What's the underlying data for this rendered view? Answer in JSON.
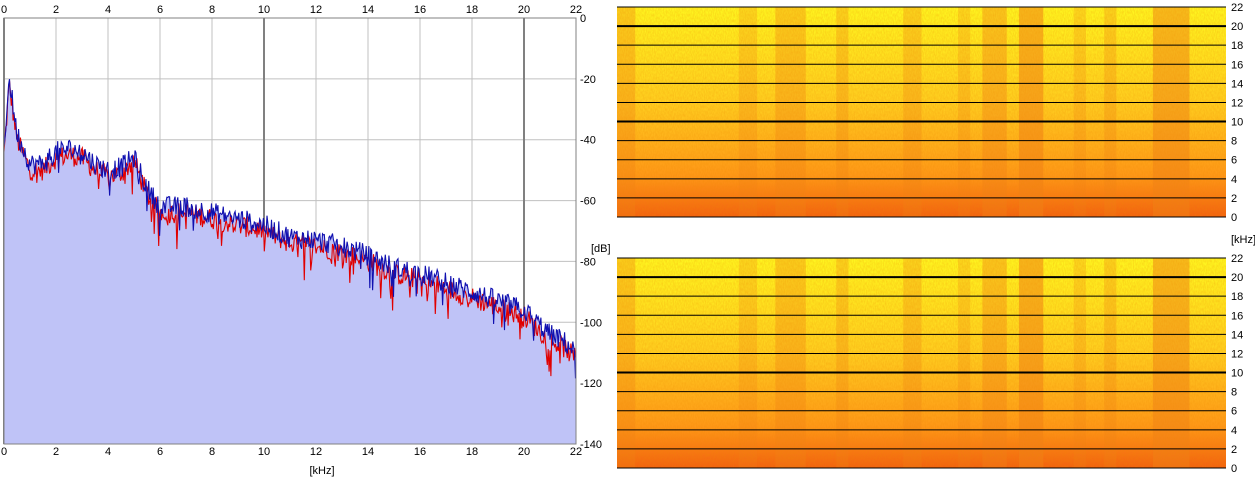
{
  "chart_data": [
    {
      "type": "line",
      "title": "",
      "xlabel": "[kHz]",
      "ylabel": "[dB]",
      "xlim": [
        0,
        22
      ],
      "ylim": [
        -140,
        0
      ],
      "x_ticks": [
        "0",
        "2",
        "4",
        "6",
        "8",
        "10",
        "12",
        "14",
        "16",
        "18",
        "20",
        "22"
      ],
      "y_ticks": [
        "0",
        "-20",
        "-40",
        "-60",
        "-80",
        "-100",
        "-120",
        "-140"
      ],
      "grid": true,
      "fill_color": "#bfc3f7",
      "series": [
        {
          "color": "#e00000",
          "x": [
            0,
            0.2,
            0.5,
            1,
            1.5,
            2,
            2.5,
            3,
            3.5,
            4,
            4.5,
            5,
            5.5,
            6,
            7,
            8,
            9,
            10,
            11,
            12,
            13,
            14,
            15,
            16,
            17,
            18,
            19,
            20,
            21,
            21.5,
            22
          ],
          "y": [
            -45,
            -22,
            -40,
            -50,
            -50,
            -46,
            -45,
            -46,
            -50,
            -52,
            -51,
            -47,
            -58,
            -64,
            -64,
            -66,
            -68,
            -70,
            -74,
            -75,
            -77,
            -80,
            -84,
            -86,
            -89,
            -92,
            -95,
            -98,
            -106,
            -108,
            -112
          ]
        },
        {
          "color": "#1010b0",
          "x": [
            0,
            0.2,
            0.5,
            1,
            1.5,
            2,
            2.5,
            3,
            3.5,
            4,
            4.5,
            5,
            5.5,
            6,
            7,
            8,
            9,
            10,
            11,
            12,
            13,
            14,
            15,
            16,
            17,
            18,
            19,
            20,
            21,
            21.5,
            22
          ],
          "y": [
            -42,
            -20,
            -38,
            -48,
            -48,
            -44,
            -43,
            -44,
            -48,
            -50,
            -49,
            -46,
            -56,
            -62,
            -62,
            -64,
            -66,
            -68,
            -72,
            -73,
            -75,
            -78,
            -82,
            -84,
            -87,
            -90,
            -93,
            -96,
            -104,
            -106,
            -110
          ]
        }
      ]
    },
    {
      "type": "heatmap",
      "ylabel": "[kHz]",
      "ylim": [
        0,
        22
      ],
      "y_ticks": [
        "22",
        "20",
        "18",
        "16",
        "14",
        "12",
        "10",
        "8",
        "6",
        "4",
        "2",
        "0"
      ],
      "colors": [
        "#fff820",
        "#ffd020",
        "#ff9818",
        "#f26010"
      ]
    },
    {
      "type": "heatmap",
      "ylim": [
        0,
        22
      ],
      "y_ticks": [
        "22",
        "20",
        "18",
        "16",
        "14",
        "12",
        "10",
        "8",
        "6",
        "4",
        "2",
        "0"
      ],
      "colors": [
        "#fff820",
        "#ffd020",
        "#ff9818",
        "#f26010"
      ]
    }
  ]
}
